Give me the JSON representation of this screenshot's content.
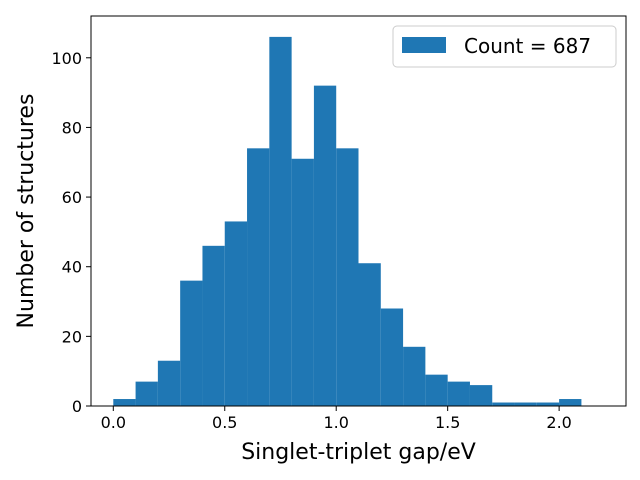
{
  "chart_data": {
    "type": "bar",
    "subtype": "histogram",
    "xlabel": "Singlet-triplet gap/eV",
    "ylabel": "Number of structures",
    "xlim": [
      -0.1,
      2.3
    ],
    "ylim": [
      0,
      112
    ],
    "bin_width": 0.1,
    "bin_starts": [
      0.0,
      0.1,
      0.2,
      0.3,
      0.4,
      0.5,
      0.6,
      0.7,
      0.8,
      0.9,
      1.0,
      1.1,
      1.2,
      1.3,
      1.4,
      1.5,
      1.6,
      1.7,
      1.8,
      1.9,
      2.0
    ],
    "values": [
      2,
      7,
      13,
      36,
      46,
      53,
      74,
      106,
      71,
      92,
      74,
      41,
      28,
      17,
      9,
      7,
      6,
      1,
      1,
      1,
      2
    ],
    "xticks": [
      "0.0",
      "0.5",
      "1.0",
      "1.5",
      "2.0"
    ],
    "yticks": [
      "0",
      "20",
      "40",
      "60",
      "80",
      "100"
    ],
    "legend": {
      "label": "Count = 687",
      "position": "top-right"
    },
    "bar_color": "#1f77b4",
    "grid": false
  }
}
